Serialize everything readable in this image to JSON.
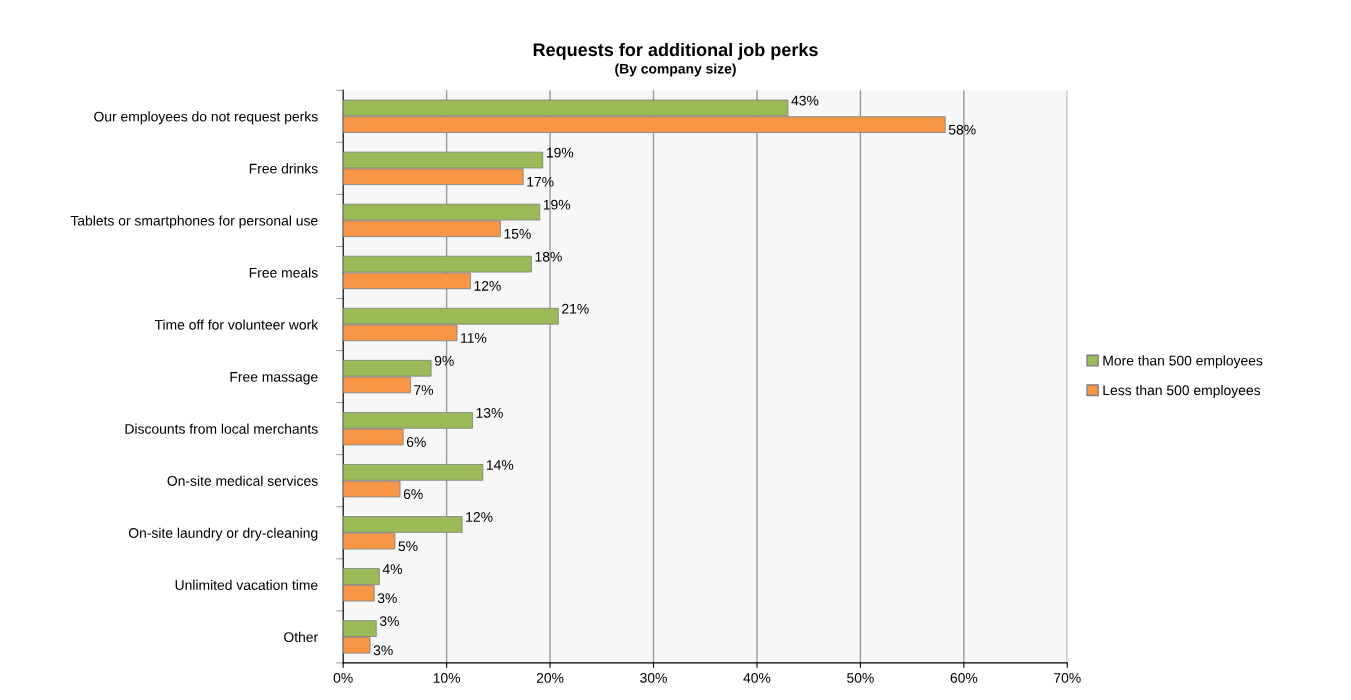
{
  "chart_data": {
    "type": "bar",
    "orientation": "horizontal",
    "title": "Requests for additional job perks",
    "subtitle": "(By company size)",
    "categories": [
      "Our employees do not request perks",
      "Free drinks",
      "Tablets or smartphones for personal use",
      "Free meals",
      "Time off for volunteer work",
      "Free massage",
      "Discounts from local merchants",
      "On-site medical services",
      "On-site laundry or dry-cleaning",
      "Unlimited vacation time",
      "Other"
    ],
    "series": [
      {
        "name": "More than 500 employees",
        "color": "#9bbb59",
        "values": [
          43,
          19.3,
          19,
          18.2,
          20.8,
          8.5,
          12.5,
          13.5,
          11.5,
          3.5,
          3.2
        ],
        "value_labels": [
          "43%",
          "19%",
          "19%",
          "18%",
          "21%",
          "9%",
          "13%",
          "14%",
          "12%",
          "4%",
          "3%"
        ]
      },
      {
        "name": "Less than 500 employees",
        "color": "#f79646",
        "values": [
          58.2,
          17.4,
          15.2,
          12.3,
          11,
          6.5,
          5.8,
          5.5,
          5,
          3,
          2.6
        ],
        "value_labels": [
          "58%",
          "17%",
          "15%",
          "12%",
          "11%",
          "7%",
          "6%",
          "6%",
          "5%",
          "3%",
          "3%"
        ]
      }
    ],
    "xlim": [
      0,
      70
    ],
    "xticks": [
      {
        "value": 0,
        "label": "0%"
      },
      {
        "value": 10,
        "label": "10%"
      },
      {
        "value": 20,
        "label": "20%"
      },
      {
        "value": 30,
        "label": "30%"
      },
      {
        "value": 40,
        "label": "40%"
      },
      {
        "value": 50,
        "label": "50%"
      },
      {
        "value": 60,
        "label": "60%"
      },
      {
        "value": 70,
        "label": "70%"
      }
    ],
    "grid": "x",
    "legend": "right"
  }
}
